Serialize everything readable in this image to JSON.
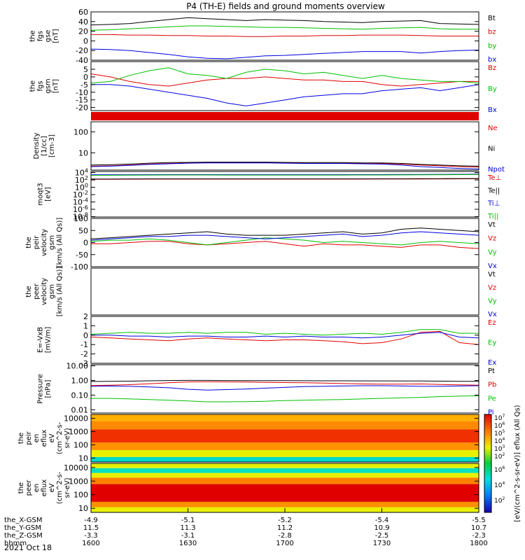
{
  "title": "P4 (TH-E) fields and ground moments overview",
  "footer": {
    "date": "2021 Oct 18"
  },
  "orbit": {
    "row_labels": [
      "the_X-GSM",
      "the_Y-GSM",
      "the_Z-GSM",
      "hhmm"
    ],
    "columns": [
      [
        "-4.9",
        "11.5",
        "-3.3",
        "1600"
      ],
      [
        "-5.1",
        "11.3",
        "-3.1",
        "1630"
      ],
      [
        "-5.2",
        "11.2",
        "-2.8",
        "1700"
      ],
      [
        "-5.4",
        "10.9",
        "-2.5",
        "1730"
      ],
      [
        "-5.5",
        "10.7",
        "-2.3",
        "1800"
      ]
    ]
  },
  "colorbar": {
    "label": "[eV/(cm^2-s-sr-eV)] eflux (All Qs)",
    "top_ticks": [
      "10^7",
      "10^6",
      "10^5",
      "10^4",
      "10^3",
      "10^2"
    ],
    "bottom_ticks": [
      "10^6",
      "10^4",
      "10^2"
    ]
  },
  "chart_data": [
    {
      "type": "line",
      "id": "fgs_gse",
      "ylabel_lines": [
        "the",
        "fgs",
        "gse",
        "[nT]"
      ],
      "ylim": [
        -40,
        60
      ],
      "yticks": [
        -40,
        -20,
        0,
        20,
        40,
        60
      ],
      "ytick_labels": [
        "-40",
        "-20",
        "0",
        "20",
        "40",
        "60"
      ],
      "series": [
        {
          "name": "Bt",
          "color": "#000000",
          "values": [
            33,
            34,
            36,
            40,
            44,
            48,
            46,
            44,
            42,
            44,
            43,
            42,
            40,
            39,
            38,
            40,
            41,
            42,
            36,
            35,
            34
          ]
        },
        {
          "name": "bz",
          "color": "#e00000",
          "values": [
            13,
            13,
            12,
            12,
            11,
            11,
            10,
            10,
            9,
            9,
            10,
            10,
            11,
            11,
            12,
            12,
            12,
            11,
            10,
            10,
            10
          ]
        },
        {
          "name": "by",
          "color": "#00c000",
          "values": [
            22,
            23,
            25,
            27,
            29,
            31,
            31,
            30,
            29,
            28,
            28,
            27,
            26,
            25,
            24,
            26,
            27,
            28,
            25,
            24,
            24
          ]
        },
        {
          "name": "bx",
          "color": "#0000e0",
          "values": [
            -17,
            -18,
            -20,
            -24,
            -28,
            -33,
            -36,
            -37,
            -34,
            -31,
            -30,
            -28,
            -26,
            -24,
            -22,
            -22,
            -22,
            -25,
            -22,
            -20,
            -19
          ]
        }
      ]
    },
    {
      "type": "line",
      "id": "fgs_gsm",
      "ylabel_lines": [
        "the",
        "fgs",
        "gsm",
        "[nT]"
      ],
      "ylim": [
        -22,
        10
      ],
      "yticks": [
        -20,
        -15,
        -10,
        -5,
        0,
        5
      ],
      "ytick_labels": [
        "-20",
        "-15",
        "-10",
        "-5",
        "0",
        "5"
      ],
      "series": [
        {
          "name": "Bz",
          "color": "#e00000",
          "values": [
            2,
            0,
            -3,
            -5,
            -6,
            -4,
            -2,
            -1,
            -1,
            0,
            -1,
            -2,
            -2,
            -3,
            -3,
            -5,
            -6,
            -5,
            -4,
            -3,
            -3
          ]
        },
        {
          "name": "By",
          "color": "#00c000",
          "values": [
            -4,
            -3,
            1,
            4,
            6,
            2,
            1,
            -1,
            3,
            5,
            4,
            2,
            3,
            1,
            -1,
            1,
            -1,
            -2,
            -3,
            -3,
            -4
          ]
        },
        {
          "name": "Bx",
          "color": "#0000e0",
          "values": [
            -5,
            -5,
            -6,
            -8,
            -10,
            -12,
            -14,
            -17,
            -19,
            -17,
            -15,
            -13,
            -12,
            -11,
            -11,
            -9,
            -8,
            -7,
            -9,
            -7,
            -5
          ]
        }
      ]
    },
    {
      "type": "line",
      "id": "density",
      "scale": "log",
      "ylabel_lines": [
        "Density",
        "[1/cc]",
        "[cm-3]"
      ],
      "ylim": [
        1.5,
        300
      ],
      "yticks": [
        10,
        100
      ],
      "ytick_labels": [
        "10",
        "100"
      ],
      "series": [
        {
          "name": "Ne",
          "color": "#e00000",
          "values": [
            2.3,
            2.4,
            2.6,
            2.9,
            3.1,
            3.3,
            3.4,
            3.4,
            3.4,
            3.4,
            3.3,
            3.2,
            3.2,
            3.2,
            3.2,
            3.1,
            2.9,
            2.6,
            2.4,
            2.2,
            2.1
          ]
        },
        {
          "name": "Ni",
          "color": "#000000",
          "values": [
            2.6,
            2.7,
            2.9,
            3.2,
            3.4,
            3.5,
            3.6,
            3.6,
            3.6,
            3.6,
            3.5,
            3.4,
            3.4,
            3.4,
            3.3,
            3.3,
            3.1,
            2.8,
            2.6,
            2.4,
            2.3
          ]
        },
        {
          "name": "Npot",
          "color": "#0000e0",
          "values": [
            2.2,
            2.3,
            2.5,
            2.8,
            3.0,
            3.2,
            3.3,
            3.3,
            3.3,
            3.3,
            3.2,
            3.1,
            3.1,
            3.1,
            3.0,
            2.9,
            2.6,
            2.2,
            2.0,
            1.8,
            1.7
          ]
        }
      ]
    },
    {
      "type": "line",
      "id": "temperature",
      "scale": "log",
      "ylabel_lines": [
        "moqt3",
        "[eV]"
      ],
      "ylim": [
        8e-09,
        20000
      ],
      "yticks": [
        10000,
        100,
        1,
        0.01,
        0.0001,
        1e-06,
        1e-08
      ],
      "ytick_labels": [
        "10^4",
        "10^2",
        "10^0",
        "10^-2",
        "10^-4",
        "10^-6",
        "10^-8"
      ],
      "series": [
        {
          "name": "Te⊥",
          "color": "#e00000",
          "values": [
            150,
            155,
            160,
            165,
            170,
            170,
            168,
            165,
            165,
            165,
            165,
            165,
            165,
            168,
            170,
            172,
            175,
            180,
            190,
            200,
            210
          ]
        },
        {
          "name": "Te||",
          "color": "#000000",
          "values": [
            180,
            185,
            190,
            195,
            200,
            200,
            198,
            195,
            195,
            195,
            195,
            195,
            195,
            198,
            200,
            205,
            210,
            215,
            225,
            235,
            245
          ]
        },
        {
          "name": "Ti⊥",
          "color": "#0000e0",
          "values": [
            2600,
            2600,
            2700,
            2800,
            2900,
            2900,
            2900,
            2800,
            2800,
            2800,
            2800,
            2800,
            2800,
            2800,
            2900,
            2900,
            3000,
            3100,
            3300,
            3500,
            3700
          ]
        },
        {
          "name": "Ti||",
          "color": "#00c000",
          "values": [
            1900,
            1900,
            2000,
            2100,
            2200,
            2200,
            2200,
            2100,
            2100,
            2100,
            2100,
            2100,
            2100,
            2100,
            2200,
            2200,
            2300,
            2400,
            2600,
            2800,
            3000
          ]
        }
      ]
    },
    {
      "type": "line",
      "id": "peir_velocity",
      "ylabel_lines": [
        "the",
        "peir",
        "velocity",
        "gsm",
        "[km/s (All Qs)]"
      ],
      "ylim": [
        -100,
        100
      ],
      "yticks": [
        -100,
        -50,
        0,
        50,
        100
      ],
      "ytick_labels": [
        "-100",
        "-50",
        "0",
        "50",
        "100"
      ],
      "series": [
        {
          "name": "Vt",
          "color": "#000000",
          "values": [
            15,
            20,
            25,
            30,
            35,
            40,
            45,
            35,
            30,
            30,
            30,
            35,
            40,
            45,
            35,
            40,
            55,
            60,
            55,
            50,
            45
          ]
        },
        {
          "name": "Vz",
          "color": "#e00000",
          "values": [
            -5,
            -5,
            0,
            5,
            5,
            -5,
            -10,
            -5,
            0,
            5,
            -5,
            -15,
            -5,
            -10,
            -10,
            -15,
            -20,
            -10,
            -10,
            -20,
            -25
          ]
        },
        {
          "name": "Vy",
          "color": "#00c000",
          "values": [
            5,
            10,
            10,
            15,
            10,
            0,
            -10,
            0,
            10,
            20,
            15,
            10,
            0,
            5,
            0,
            -5,
            -10,
            0,
            5,
            0,
            -5
          ]
        },
        {
          "name": "Vx",
          "color": "#0000e0",
          "values": [
            10,
            15,
            20,
            25,
            25,
            30,
            30,
            25,
            20,
            15,
            20,
            25,
            30,
            35,
            25,
            30,
            40,
            45,
            40,
            35,
            30
          ]
        }
      ]
    },
    {
      "type": "line",
      "id": "peer_velocity",
      "ylabel_lines": [
        "the",
        "peer",
        "velocity",
        "gsm",
        "[km/s (All Qs)]"
      ],
      "ylim": [
        -100,
        100
      ],
      "yticks": [],
      "ytick_labels": [],
      "series": [
        {
          "name": "Vt",
          "color": "#000000",
          "values": []
        },
        {
          "name": "Vz",
          "color": "#e00000",
          "values": []
        },
        {
          "name": "Vy",
          "color": "#00c000",
          "values": []
        },
        {
          "name": "Vx",
          "color": "#0000e0",
          "values": []
        }
      ]
    },
    {
      "type": "line",
      "id": "efield",
      "ylabel_lines": [
        "E=-VxB",
        "[mV/m]"
      ],
      "ylim": [
        -3,
        2
      ],
      "yticks": [
        -3,
        -2,
        -1,
        0,
        1,
        2
      ],
      "ytick_labels": [
        "-3",
        "-2",
        "-1",
        "0",
        "1",
        "2"
      ],
      "series": [
        {
          "name": "Ez",
          "color": "#e00000",
          "values": [
            -0.2,
            -0.3,
            -0.4,
            -0.5,
            -0.6,
            -0.4,
            -0.3,
            -0.4,
            -0.5,
            -0.6,
            -0.5,
            -0.5,
            -0.6,
            -0.7,
            -0.9,
            -0.8,
            -0.4,
            0.3,
            0.4,
            -0.8,
            -1.0
          ]
        },
        {
          "name": "Ey",
          "color": "#00c000",
          "values": [
            0.1,
            0.2,
            0.3,
            0.2,
            0.2,
            0.3,
            0.2,
            0.3,
            0.3,
            0.1,
            0.2,
            0.1,
            0.0,
            0.1,
            0.2,
            0.1,
            0.3,
            0.6,
            0.6,
            0.2,
            0.2
          ]
        },
        {
          "name": "Ex",
          "color": "#0000e0",
          "values": [
            0.0,
            0.0,
            -0.1,
            -0.1,
            -0.2,
            -0.1,
            -0.1,
            -0.2,
            -0.2,
            -0.1,
            -0.2,
            -0.1,
            -0.2,
            -0.2,
            -0.3,
            -0.2,
            0.0,
            0.2,
            0.3,
            -0.2,
            -0.3
          ]
        }
      ]
    },
    {
      "type": "line",
      "id": "pressure",
      "scale": "log",
      "ylabel_lines": [
        "Pressure",
        "[nPa]"
      ],
      "ylim": [
        0.006,
        12
      ],
      "yticks": [
        0.01,
        0.1,
        1,
        10
      ],
      "ytick_labels": [
        "0.01",
        "0.10",
        "1.00",
        "10.00"
      ],
      "series": [
        {
          "name": "Pt",
          "color": "#000000",
          "values": [
            0.85,
            0.88,
            0.9,
            0.95,
            1.0,
            1.02,
            1.02,
            1.0,
            0.98,
            0.98,
            0.97,
            0.96,
            0.95,
            0.95,
            0.94,
            0.94,
            0.93,
            0.92,
            0.9,
            0.88,
            0.87
          ]
        },
        {
          "name": "Pb",
          "color": "#e00000",
          "values": [
            0.45,
            0.48,
            0.52,
            0.6,
            0.7,
            0.8,
            0.82,
            0.8,
            0.78,
            0.75,
            0.72,
            0.7,
            0.66,
            0.62,
            0.58,
            0.56,
            0.56,
            0.58,
            0.54,
            0.5,
            0.48
          ]
        },
        {
          "name": "Pe",
          "color": "#00c000",
          "values": [
            0.06,
            0.06,
            0.055,
            0.05,
            0.045,
            0.04,
            0.035,
            0.035,
            0.036,
            0.038,
            0.042,
            0.045,
            0.048,
            0.05,
            0.055,
            0.06,
            0.065,
            0.07,
            0.08,
            0.085,
            0.09
          ]
        },
        {
          "name": "Pi",
          "color": "#0000e0",
          "values": [
            0.4,
            0.42,
            0.4,
            0.36,
            0.32,
            0.25,
            0.22,
            0.24,
            0.26,
            0.3,
            0.34,
            0.38,
            0.4,
            0.42,
            0.44,
            0.44,
            0.42,
            0.4,
            0.4,
            0.42,
            0.44
          ]
        }
      ]
    },
    {
      "type": "heatmap",
      "id": "peir_eflux",
      "ylabel_lines": [
        "the",
        "peir",
        "en",
        "eflux",
        "eV",
        "(cm^2-s-",
        "sr-eV)"
      ],
      "ylim": [
        5,
        20000
      ],
      "scale": "log",
      "yticks": [
        10,
        100,
        1000,
        10000
      ],
      "ytick_labels": [
        "10",
        "100",
        "1000",
        "10000"
      ]
    },
    {
      "type": "heatmap",
      "id": "peer_eflux",
      "ylabel_lines": [
        "the",
        "peer",
        "en",
        "eflux",
        "eV",
        "(cm^2-s-",
        "sr-eV)"
      ],
      "ylim": [
        5,
        20000
      ],
      "scale": "log",
      "yticks": [
        10,
        100,
        1000,
        10000
      ],
      "ytick_labels": [
        "10",
        "100",
        "1000",
        "10000"
      ]
    }
  ]
}
